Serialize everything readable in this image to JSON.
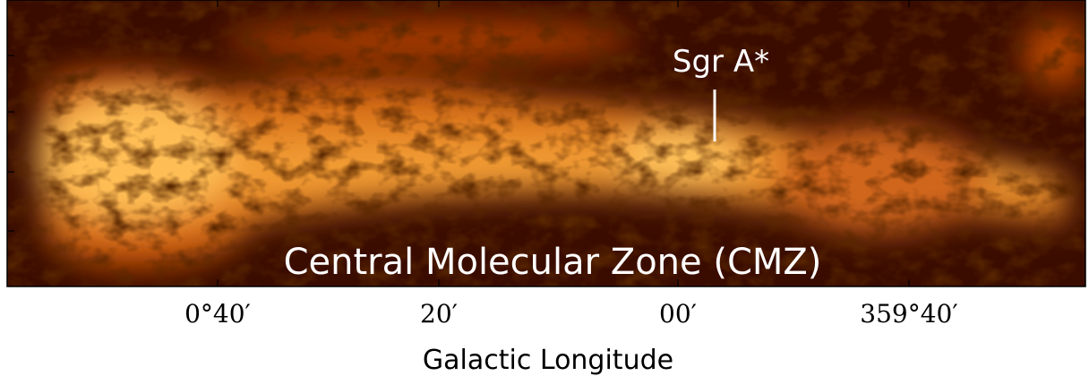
{
  "image": {
    "annotations": {
      "source": "Sgr A*",
      "region": "Central Molecular Zone (CMZ)"
    },
    "x_axis": {
      "label": "Galactic Longitude",
      "ticks": [
        "0°40′",
        "20′",
        "00′",
        "359°40′"
      ]
    }
  }
}
